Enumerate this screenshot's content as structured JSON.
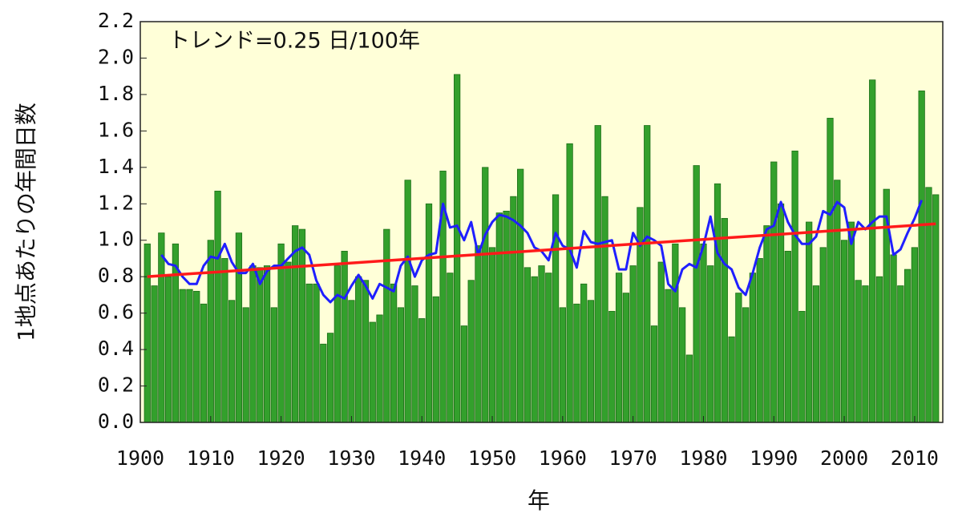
{
  "chart_data": {
    "type": "bar",
    "annotation": "トレンド=0.25 日/100年",
    "x_label": "年",
    "y_label": "1地点あたりの年間日数",
    "xlim": [
      1900,
      2014
    ],
    "ylim": [
      0,
      2.2
    ],
    "xticks": [
      1900,
      1910,
      1920,
      1930,
      1940,
      1950,
      1960,
      1970,
      1980,
      1990,
      2000,
      2010
    ],
    "yticks": [
      {
        "value": 0,
        "label": "0.0"
      },
      0.2,
      0.4,
      0.6,
      0.8,
      {
        "value": 1,
        "label": "1.0"
      },
      1.2,
      1.4,
      1.6,
      1.8,
      {
        "value": 2,
        "label": "2.0"
      },
      2.2
    ],
    "bar_color": "#33a02c",
    "x": [
      1901,
      1902,
      1903,
      1904,
      1905,
      1906,
      1907,
      1908,
      1909,
      1910,
      1911,
      1912,
      1913,
      1914,
      1915,
      1916,
      1917,
      1918,
      1919,
      1920,
      1921,
      1922,
      1923,
      1924,
      1925,
      1926,
      1927,
      1928,
      1929,
      1930,
      1931,
      1932,
      1933,
      1934,
      1935,
      1936,
      1937,
      1938,
      1939,
      1940,
      1941,
      1942,
      1943,
      1944,
      1945,
      1946,
      1947,
      1948,
      1949,
      1950,
      1951,
      1952,
      1953,
      1954,
      1955,
      1956,
      1957,
      1958,
      1959,
      1960,
      1961,
      1962,
      1963,
      1964,
      1965,
      1966,
      1967,
      1968,
      1969,
      1970,
      1971,
      1972,
      1973,
      1974,
      1975,
      1976,
      1977,
      1978,
      1979,
      1980,
      1981,
      1982,
      1983,
      1984,
      1985,
      1986,
      1987,
      1988,
      1989,
      1990,
      1991,
      1992,
      1993,
      1994,
      1995,
      1996,
      1997,
      1998,
      1999,
      2000,
      2001,
      2002,
      2003,
      2004,
      2005,
      2006,
      2007,
      2008,
      2009,
      2010,
      2011,
      2012,
      2013
    ],
    "values": [
      0.98,
      0.75,
      1.04,
      0.8,
      0.98,
      0.73,
      0.73,
      0.72,
      0.65,
      1.0,
      1.27,
      0.9,
      0.67,
      1.04,
      0.63,
      0.86,
      0.85,
      0.86,
      0.63,
      0.98,
      0.88,
      1.08,
      1.06,
      0.76,
      0.76,
      0.43,
      0.49,
      0.86,
      0.94,
      0.67,
      0.8,
      0.78,
      0.55,
      0.59,
      1.06,
      0.76,
      0.63,
      1.33,
      0.75,
      0.57,
      1.2,
      0.69,
      1.38,
      0.82,
      1.91,
      0.53,
      0.78,
      0.97,
      1.4,
      0.96,
      1.15,
      1.16,
      1.24,
      1.39,
      0.85,
      0.8,
      0.86,
      0.82,
      1.25,
      0.63,
      1.53,
      0.65,
      0.76,
      0.67,
      1.63,
      1.24,
      0.61,
      0.82,
      0.71,
      0.86,
      1.18,
      1.63,
      0.53,
      0.88,
      0.73,
      0.98,
      0.63,
      0.37,
      1.41,
      0.98,
      0.86,
      1.31,
      1.12,
      0.47,
      0.71,
      0.63,
      0.82,
      0.9,
      1.08,
      1.43,
      1.2,
      0.94,
      1.49,
      0.61,
      1.1,
      0.75,
      0.96,
      1.67,
      1.33,
      1.0,
      1.1,
      0.78,
      0.75,
      1.88,
      0.8,
      1.28,
      0.92,
      0.75,
      0.84,
      0.96,
      1.82,
      1.29,
      1.25
    ],
    "moving_average": {
      "color": "#1f1fff",
      "values": [
        null,
        null,
        0.92,
        0.87,
        0.86,
        0.8,
        0.76,
        0.76,
        0.86,
        0.91,
        0.9,
        0.98,
        0.88,
        0.82,
        0.82,
        0.87,
        0.76,
        0.83,
        0.86,
        0.86,
        0.9,
        0.94,
        0.96,
        0.92,
        0.78,
        0.7,
        0.66,
        0.7,
        0.68,
        0.75,
        0.81,
        0.75,
        0.68,
        0.76,
        0.74,
        0.72,
        0.86,
        0.91,
        0.8,
        0.89,
        0.92,
        0.93,
        1.2,
        1.07,
        1.08,
        1.0,
        1.1,
        0.92,
        1.03,
        1.1,
        1.14,
        1.13,
        1.11,
        1.08,
        1.04,
        0.96,
        0.94,
        0.89,
        1.04,
        0.97,
        0.95,
        0.85,
        1.05,
        0.99,
        0.98,
        0.99,
        1.0,
        0.84,
        0.84,
        1.04,
        0.97,
        1.02,
        1.0,
        0.97,
        0.76,
        0.72,
        0.84,
        0.87,
        0.85,
        0.97,
        1.13,
        0.93,
        0.87,
        0.84,
        0.74,
        0.7,
        0.82,
        0.96,
        1.06,
        1.08,
        1.21,
        1.1,
        1.03,
        0.98,
        0.98,
        1.02,
        1.16,
        1.14,
        1.21,
        1.18,
        0.98,
        1.1,
        1.06,
        1.1,
        1.13,
        1.13,
        0.92,
        0.95,
        1.04,
        1.12,
        1.22,
        null,
        null
      ]
    },
    "trend": {
      "color": "#ff1a1a",
      "x": [
        1901,
        2013
      ],
      "values": [
        0.8,
        1.09
      ]
    }
  }
}
